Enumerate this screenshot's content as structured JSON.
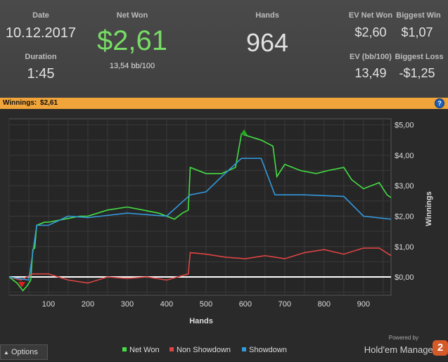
{
  "stats": {
    "date_label": "Date",
    "date_value": "10.12.2017",
    "duration_label": "Duration",
    "duration_value": "1:45",
    "net_won_label": "Net Won",
    "net_won_value": "$2,61",
    "net_won_sub": "13,54 bb/100",
    "hands_label": "Hands",
    "hands_value": "964",
    "ev_net_won_label": "EV Net Won",
    "ev_net_won_value": "$2,60",
    "biggest_win_label": "Biggest Win",
    "biggest_win_value": "$1,07",
    "ev_bb_label": "EV (bb/100)",
    "ev_bb_value": "13,49",
    "biggest_loss_label": "Biggest Loss",
    "biggest_loss_value": "-$1,25"
  },
  "banner": {
    "label": "Winnings:",
    "amount": "$2,61",
    "help_icon": "?"
  },
  "footer": {
    "options_label": "Options",
    "powered_by": "Powered by",
    "brand": "Hold'em Manager",
    "brand_badge": "2"
  },
  "colors": {
    "net_won": "#44dd44",
    "non_showdown": "#dd4444",
    "showdown": "#3399dd",
    "zero_line": "#ffffff",
    "banner": "#f0a43a",
    "net_won_big": "#77dd66"
  },
  "chart_data": {
    "type": "line",
    "xlabel": "Hands",
    "ylabel": "Winnings",
    "xlim": [
      0,
      970
    ],
    "ylim": [
      -0.6,
      5.2
    ],
    "x_ticks": [
      100,
      200,
      300,
      400,
      500,
      600,
      700,
      800,
      900
    ],
    "y_ticks": [
      0,
      1,
      2,
      3,
      4,
      5
    ],
    "y_tick_labels": [
      "$0,00",
      "$1,00",
      "$2,00",
      "$3,00",
      "$4,00",
      "$5,00"
    ],
    "legend_position": "bottom",
    "series": [
      {
        "name": "Net Won",
        "color": "#44dd44",
        "points": [
          [
            0,
            0
          ],
          [
            20,
            -0.2
          ],
          [
            35,
            -0.45
          ],
          [
            45,
            -0.3
          ],
          [
            55,
            -0.1
          ],
          [
            60,
            0.9
          ],
          [
            65,
            0.95
          ],
          [
            70,
            1.7
          ],
          [
            90,
            1.8
          ],
          [
            100,
            1.8
          ],
          [
            140,
            1.9
          ],
          [
            180,
            2.0
          ],
          [
            200,
            2.0
          ],
          [
            250,
            2.2
          ],
          [
            300,
            2.3
          ],
          [
            340,
            2.2
          ],
          [
            380,
            2.1
          ],
          [
            420,
            1.9
          ],
          [
            440,
            2.1
          ],
          [
            455,
            2.2
          ],
          [
            460,
            3.6
          ],
          [
            500,
            3.4
          ],
          [
            540,
            3.4
          ],
          [
            575,
            3.6
          ],
          [
            590,
            4.7
          ],
          [
            640,
            4.5
          ],
          [
            670,
            4.3
          ],
          [
            680,
            3.3
          ],
          [
            700,
            3.7
          ],
          [
            740,
            3.5
          ],
          [
            780,
            3.4
          ],
          [
            810,
            3.5
          ],
          [
            850,
            3.6
          ],
          [
            870,
            3.2
          ],
          [
            900,
            2.9
          ],
          [
            940,
            3.1
          ],
          [
            960,
            2.7
          ],
          [
            970,
            2.61
          ]
        ]
      },
      {
        "name": "Non Showdown",
        "color": "#dd4444",
        "points": [
          [
            0,
            0
          ],
          [
            30,
            -0.1
          ],
          [
            60,
            0.1
          ],
          [
            100,
            0.1
          ],
          [
            150,
            -0.1
          ],
          [
            200,
            -0.2
          ],
          [
            250,
            0
          ],
          [
            300,
            -0.05
          ],
          [
            350,
            0
          ],
          [
            400,
            -0.1
          ],
          [
            455,
            0.1
          ],
          [
            460,
            0.8
          ],
          [
            500,
            0.75
          ],
          [
            550,
            0.65
          ],
          [
            600,
            0.6
          ],
          [
            650,
            0.7
          ],
          [
            700,
            0.6
          ],
          [
            750,
            0.8
          ],
          [
            800,
            0.9
          ],
          [
            850,
            0.75
          ],
          [
            900,
            0.95
          ],
          [
            940,
            0.95
          ],
          [
            970,
            0.7
          ]
        ]
      },
      {
        "name": "Showdown",
        "color": "#3399dd",
        "points": [
          [
            0,
            0
          ],
          [
            50,
            -0.1
          ],
          [
            70,
            1.7
          ],
          [
            100,
            1.7
          ],
          [
            150,
            2.0
          ],
          [
            200,
            1.95
          ],
          [
            300,
            2.1
          ],
          [
            400,
            2.0
          ],
          [
            460,
            2.7
          ],
          [
            500,
            2.8
          ],
          [
            540,
            3.3
          ],
          [
            590,
            3.9
          ],
          [
            640,
            3.9
          ],
          [
            675,
            2.7
          ],
          [
            750,
            2.7
          ],
          [
            850,
            2.65
          ],
          [
            900,
            2.0
          ],
          [
            970,
            1.9
          ]
        ]
      }
    ]
  }
}
